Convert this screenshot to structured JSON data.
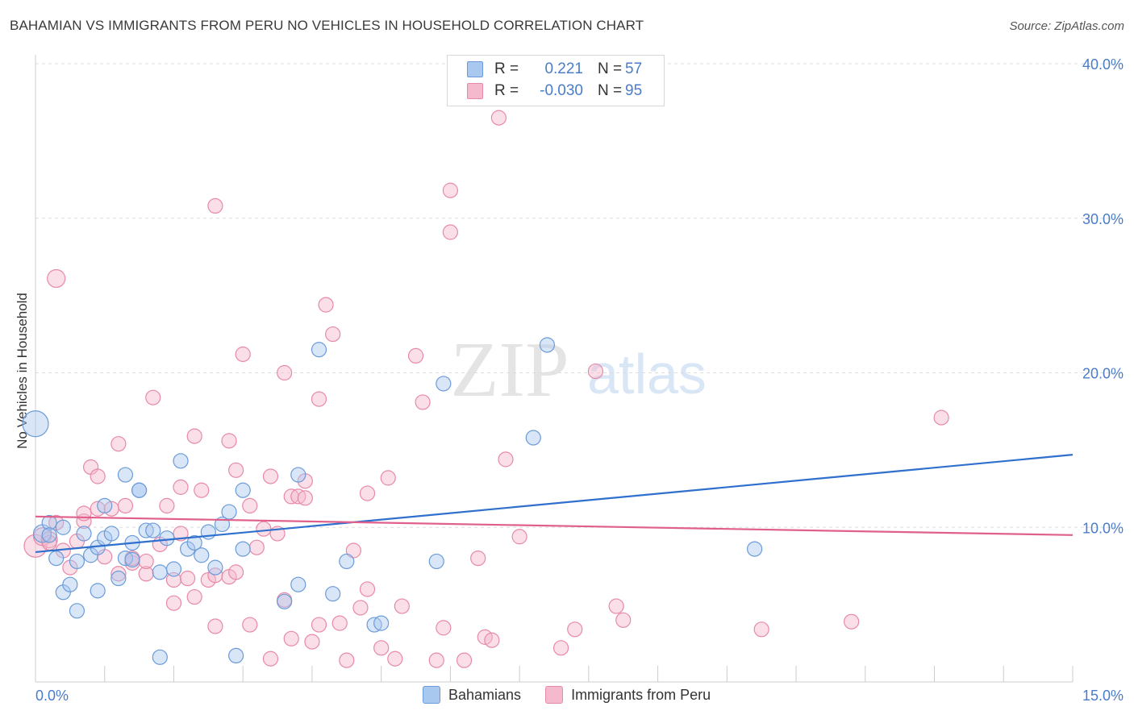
{
  "title": "BAHAMIAN VS IMMIGRANTS FROM PERU NO VEHICLES IN HOUSEHOLD CORRELATION CHART",
  "source": "Source: ZipAtlas.com",
  "watermark": {
    "zip": "ZIP",
    "atlas": "atlas"
  },
  "colors": {
    "blue_fill": "#a9c8f0",
    "blue_stroke": "#6b9bd8",
    "blue_line": "#2f6fce",
    "pink_fill": "#f5b9cd",
    "pink_stroke": "#e889a8",
    "pink_line": "#e0608c",
    "axis_label": "#4a7cc9",
    "grid": "#dddddd"
  },
  "legend_top": {
    "rows": [
      {
        "r_label": "R =",
        "r_value": "0.221",
        "n_label": "N =",
        "n_value": "57",
        "color": "blue"
      },
      {
        "r_label": "R =",
        "r_value": "-0.030",
        "n_label": "N =",
        "n_value": "95",
        "color": "pink"
      }
    ]
  },
  "legend_bottom": [
    {
      "label": "Bahamians",
      "color": "blue"
    },
    {
      "label": "Immigrants from Peru",
      "color": "pink"
    }
  ],
  "chart_data": {
    "type": "scatter",
    "ylabel": "No Vehicles in Household",
    "xlabel": "",
    "xlim": [
      0,
      15
    ],
    "ylim": [
      0,
      40
    ],
    "x_tick_labels": [
      {
        "value": 0,
        "label": "0.0%"
      },
      {
        "value": 15,
        "label": "15.0%"
      }
    ],
    "y_tick_labels": [
      {
        "value": 10,
        "label": "10.0%"
      },
      {
        "value": 20,
        "label": "20.0%"
      },
      {
        "value": 30,
        "label": "30.0%"
      },
      {
        "value": 40,
        "label": "40.0%"
      }
    ],
    "grid": true,
    "legend_position": "top-center",
    "series": [
      {
        "name": "Bahamians",
        "color": "blue",
        "trend": {
          "x": [
            0,
            15
          ],
          "y": [
            8.4,
            14.7
          ]
        },
        "points": [
          [
            0.0,
            16.7,
            16
          ],
          [
            0.1,
            9.6,
            11
          ],
          [
            0.2,
            10.3,
            9
          ],
          [
            0.2,
            9.5,
            9
          ],
          [
            0.3,
            8.0,
            9
          ],
          [
            0.4,
            5.8,
            9
          ],
          [
            0.4,
            10.0,
            9
          ],
          [
            0.5,
            6.3,
            9
          ],
          [
            0.6,
            7.8,
            9
          ],
          [
            0.6,
            4.6,
            9
          ],
          [
            0.7,
            9.6,
            9
          ],
          [
            0.8,
            8.2,
            9
          ],
          [
            0.9,
            8.7,
            9
          ],
          [
            0.9,
            5.9,
            9
          ],
          [
            1.0,
            9.3,
            9
          ],
          [
            1.0,
            11.4,
            9
          ],
          [
            1.1,
            9.6,
            9
          ],
          [
            1.2,
            6.7,
            9
          ],
          [
            1.3,
            8.0,
            9
          ],
          [
            1.3,
            13.4,
            9
          ],
          [
            1.4,
            7.9,
            9
          ],
          [
            1.4,
            9.0,
            9
          ],
          [
            1.5,
            12.4,
            9
          ],
          [
            1.5,
            12.4,
            9
          ],
          [
            1.6,
            9.8,
            9
          ],
          [
            1.7,
            9.8,
            9
          ],
          [
            1.8,
            7.1,
            9
          ],
          [
            1.8,
            1.6,
            9
          ],
          [
            1.9,
            9.3,
            9
          ],
          [
            2.0,
            7.3,
            9
          ],
          [
            2.1,
            14.3,
            9
          ],
          [
            2.2,
            8.6,
            9
          ],
          [
            2.3,
            9.0,
            9
          ],
          [
            2.4,
            8.2,
            9
          ],
          [
            2.5,
            9.7,
            9
          ],
          [
            2.6,
            7.4,
            9
          ],
          [
            2.7,
            10.2,
            9
          ],
          [
            2.8,
            11.0,
            9
          ],
          [
            2.9,
            1.7,
            9
          ],
          [
            3.0,
            8.6,
            9
          ],
          [
            3.0,
            12.4,
            9
          ],
          [
            3.6,
            5.2,
            9
          ],
          [
            3.8,
            13.4,
            9
          ],
          [
            3.8,
            6.3,
            9
          ],
          [
            4.1,
            21.5,
            9
          ],
          [
            4.3,
            5.7,
            9
          ],
          [
            4.5,
            7.8,
            9
          ],
          [
            4.9,
            3.7,
            9
          ],
          [
            5.0,
            3.8,
            9
          ],
          [
            5.8,
            7.8,
            9
          ],
          [
            5.9,
            19.3,
            9
          ],
          [
            7.2,
            15.8,
            9
          ],
          [
            7.4,
            21.8,
            9
          ],
          [
            10.4,
            8.6,
            9
          ]
        ]
      },
      {
        "name": "Immigrants from Peru",
        "color": "pink",
        "trend": {
          "x": [
            0,
            15
          ],
          "y": [
            10.7,
            9.5
          ]
        },
        "points": [
          [
            0.0,
            8.8,
            14
          ],
          [
            0.1,
            9.4,
            11
          ],
          [
            0.2,
            9.2,
            10
          ],
          [
            0.2,
            9.0,
            9
          ],
          [
            0.3,
            26.1,
            11
          ],
          [
            0.3,
            10.3,
            9
          ],
          [
            0.4,
            8.5,
            9
          ],
          [
            0.5,
            7.4,
            9
          ],
          [
            0.6,
            9.1,
            9
          ],
          [
            0.7,
            10.4,
            9
          ],
          [
            0.7,
            10.9,
            9
          ],
          [
            0.8,
            13.9,
            9
          ],
          [
            0.9,
            13.3,
            9
          ],
          [
            0.9,
            11.2,
            9
          ],
          [
            1.0,
            8.1,
            9
          ],
          [
            1.1,
            11.2,
            9
          ],
          [
            1.2,
            7.0,
            9
          ],
          [
            1.2,
            15.4,
            9
          ],
          [
            1.3,
            11.4,
            9
          ],
          [
            1.4,
            7.7,
            9
          ],
          [
            1.4,
            8.0,
            9
          ],
          [
            1.6,
            7.0,
            9
          ],
          [
            1.6,
            7.8,
            9
          ],
          [
            1.7,
            18.4,
            9
          ],
          [
            1.8,
            8.9,
            9
          ],
          [
            1.9,
            11.4,
            9
          ],
          [
            2.0,
            6.6,
            9
          ],
          [
            2.0,
            5.1,
            9
          ],
          [
            2.1,
            9.6,
            9
          ],
          [
            2.1,
            12.6,
            9
          ],
          [
            2.2,
            6.7,
            9
          ],
          [
            2.3,
            15.9,
            9
          ],
          [
            2.3,
            5.5,
            9
          ],
          [
            2.4,
            12.4,
            9
          ],
          [
            2.5,
            6.6,
            9
          ],
          [
            2.6,
            3.6,
            9
          ],
          [
            2.6,
            6.9,
            9
          ],
          [
            2.6,
            30.8,
            9
          ],
          [
            2.8,
            6.8,
            9
          ],
          [
            2.8,
            15.6,
            9
          ],
          [
            2.9,
            13.7,
            9
          ],
          [
            2.9,
            7.1,
            9
          ],
          [
            3.0,
            21.2,
            9
          ],
          [
            3.1,
            11.4,
            9
          ],
          [
            3.1,
            3.7,
            9
          ],
          [
            3.2,
            8.7,
            9
          ],
          [
            3.3,
            9.9,
            9
          ],
          [
            3.4,
            1.5,
            9
          ],
          [
            3.4,
            13.3,
            9
          ],
          [
            3.5,
            9.6,
            9
          ],
          [
            3.6,
            5.3,
            9
          ],
          [
            3.6,
            20.0,
            9
          ],
          [
            3.7,
            12.0,
            9
          ],
          [
            3.7,
            2.8,
            9
          ],
          [
            3.8,
            12.0,
            9
          ],
          [
            3.9,
            11.9,
            9
          ],
          [
            3.9,
            13.0,
            9
          ],
          [
            4.0,
            2.6,
            9
          ],
          [
            4.1,
            3.7,
            9
          ],
          [
            4.1,
            18.3,
            9
          ],
          [
            4.2,
            24.4,
            9
          ],
          [
            4.3,
            22.5,
            9
          ],
          [
            4.4,
            3.8,
            9
          ],
          [
            4.5,
            1.4,
            9
          ],
          [
            4.6,
            8.5,
            9
          ],
          [
            4.7,
            4.8,
            9
          ],
          [
            4.8,
            6.0,
            9
          ],
          [
            4.8,
            12.2,
            9
          ],
          [
            5.0,
            2.2,
            9
          ],
          [
            5.1,
            13.2,
            9
          ],
          [
            5.2,
            1.5,
            9
          ],
          [
            5.3,
            4.9,
            9
          ],
          [
            5.5,
            21.1,
            9
          ],
          [
            5.6,
            18.1,
            9
          ],
          [
            5.8,
            1.4,
            9
          ],
          [
            5.9,
            3.5,
            9
          ],
          [
            6.0,
            31.8,
            9
          ],
          [
            6.0,
            29.1,
            9
          ],
          [
            6.2,
            1.4,
            9
          ],
          [
            6.4,
            8.0,
            9
          ],
          [
            6.5,
            2.9,
            9
          ],
          [
            6.6,
            2.7,
            9
          ],
          [
            6.7,
            36.5,
            9
          ],
          [
            6.8,
            14.4,
            9
          ],
          [
            7.0,
            9.4,
            9
          ],
          [
            7.6,
            2.2,
            9
          ],
          [
            7.8,
            3.4,
            9
          ],
          [
            8.1,
            20.1,
            9
          ],
          [
            8.4,
            4.9,
            9
          ],
          [
            8.5,
            4.0,
            9
          ],
          [
            10.5,
            3.4,
            9
          ],
          [
            11.8,
            3.9,
            9
          ],
          [
            13.1,
            17.1,
            9
          ]
        ]
      }
    ]
  }
}
